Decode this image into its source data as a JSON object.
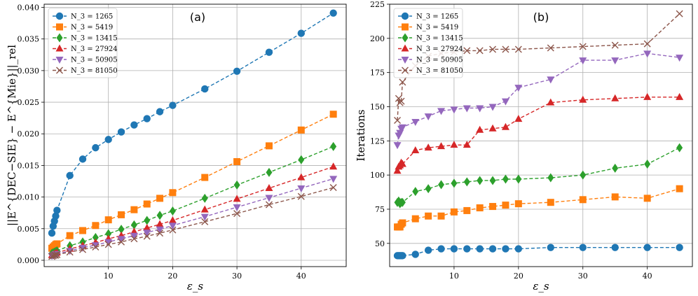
{
  "chart_data": [
    {
      "type": "line",
      "panel_label": "(a)",
      "xlabel": "ε_s",
      "ylabel": "||E^{DEC−SIE} − E^{Mie}||_rel",
      "xlim": [
        0,
        47
      ],
      "ylim": [
        -0.001,
        0.0405
      ],
      "xticks": [
        10,
        20,
        30,
        40
      ],
      "yticks": [
        0.0,
        0.005,
        0.01,
        0.015,
        0.02,
        0.025,
        0.03,
        0.035,
        0.04
      ],
      "ytick_labels": [
        "0.000",
        "0.005",
        "0.010",
        "0.015",
        "0.020",
        "0.025",
        "0.030",
        "0.035",
        "0.040"
      ],
      "grid": true,
      "legend_position": "top-left",
      "series": [
        {
          "name": "N_3 = 1265",
          "color": "#1f77b4",
          "marker": "circle",
          "points": [
            [
              1.2,
              0.0043
            ],
            [
              1.4,
              0.0054
            ],
            [
              1.6,
              0.0062
            ],
            [
              1.8,
              0.007
            ],
            [
              2,
              0.0079
            ],
            [
              4,
              0.0134
            ],
            [
              6,
              0.016
            ],
            [
              8,
              0.0178
            ],
            [
              10,
              0.0191
            ],
            [
              12,
              0.0203
            ],
            [
              14,
              0.0214
            ],
            [
              16,
              0.0224
            ],
            [
              18,
              0.0235
            ],
            [
              20,
              0.0245
            ],
            [
              25,
              0.0271
            ],
            [
              30,
              0.0299
            ],
            [
              35,
              0.0329
            ],
            [
              40,
              0.0359
            ],
            [
              45,
              0.0391
            ]
          ]
        },
        {
          "name": "N_3 = 5419",
          "color": "#ff7f0e",
          "marker": "square",
          "points": [
            [
              1.2,
              0.0019
            ],
            [
              1.4,
              0.0021
            ],
            [
              1.6,
              0.0023
            ],
            [
              1.8,
              0.0025
            ],
            [
              2,
              0.0026
            ],
            [
              4,
              0.0039
            ],
            [
              6,
              0.0047
            ],
            [
              8,
              0.0055
            ],
            [
              10,
              0.0064
            ],
            [
              12,
              0.0072
            ],
            [
              14,
              0.008
            ],
            [
              16,
              0.0089
            ],
            [
              18,
              0.0098
            ],
            [
              20,
              0.0107
            ],
            [
              25,
              0.0131
            ],
            [
              30,
              0.0156
            ],
            [
              35,
              0.0181
            ],
            [
              40,
              0.0206
            ],
            [
              45,
              0.0231
            ]
          ]
        },
        {
          "name": "N_3 = 13415",
          "color": "#2ca02c",
          "marker": "diamond",
          "points": [
            [
              1.2,
              0.0011
            ],
            [
              1.4,
              0.0012
            ],
            [
              1.6,
              0.0013
            ],
            [
              1.8,
              0.0014
            ],
            [
              2,
              0.0015
            ],
            [
              4,
              0.0023
            ],
            [
              6,
              0.0029
            ],
            [
              8,
              0.0036
            ],
            [
              10,
              0.0042
            ],
            [
              12,
              0.0049
            ],
            [
              14,
              0.0056
            ],
            [
              16,
              0.0063
            ],
            [
              18,
              0.0071
            ],
            [
              20,
              0.0078
            ],
            [
              25,
              0.0098
            ],
            [
              30,
              0.0119
            ],
            [
              35,
              0.0139
            ],
            [
              40,
              0.0159
            ],
            [
              45,
              0.018
            ]
          ]
        },
        {
          "name": "N_3 = 27924",
          "color": "#d62728",
          "marker": "triangle-up",
          "points": [
            [
              1.2,
              0.0008
            ],
            [
              1.4,
              0.0009
            ],
            [
              1.6,
              0.001
            ],
            [
              1.8,
              0.0011
            ],
            [
              2,
              0.0012
            ],
            [
              4,
              0.0018
            ],
            [
              6,
              0.0023
            ],
            [
              8,
              0.0028
            ],
            [
              10,
              0.0034
            ],
            [
              12,
              0.0039
            ],
            [
              14,
              0.0045
            ],
            [
              16,
              0.0051
            ],
            [
              18,
              0.0057
            ],
            [
              20,
              0.0063
            ],
            [
              25,
              0.008
            ],
            [
              30,
              0.0097
            ],
            [
              35,
              0.0114
            ],
            [
              40,
              0.0131
            ],
            [
              45,
              0.0148
            ]
          ]
        },
        {
          "name": "N_3 = 50905",
          "color": "#9467bd",
          "marker": "triangle-down",
          "points": [
            [
              1.2,
              0.0007
            ],
            [
              1.4,
              0.0008
            ],
            [
              1.6,
              0.0009
            ],
            [
              1.8,
              0.001
            ],
            [
              2,
              0.001
            ],
            [
              4,
              0.0015
            ],
            [
              6,
              0.002
            ],
            [
              8,
              0.0024
            ],
            [
              10,
              0.0029
            ],
            [
              12,
              0.0034
            ],
            [
              14,
              0.0039
            ],
            [
              16,
              0.0044
            ],
            [
              18,
              0.0049
            ],
            [
              20,
              0.0055
            ],
            [
              25,
              0.0069
            ],
            [
              30,
              0.0084
            ],
            [
              35,
              0.0099
            ],
            [
              40,
              0.0114
            ],
            [
              45,
              0.0129
            ]
          ]
        },
        {
          "name": "N_3 = 81050",
          "color": "#8c564b",
          "marker": "x",
          "points": [
            [
              1.2,
              0.0006
            ],
            [
              1.4,
              0.0007
            ],
            [
              1.6,
              0.0008
            ],
            [
              1.8,
              0.0008
            ],
            [
              2,
              0.0009
            ],
            [
              4,
              0.0013
            ],
            [
              6,
              0.0017
            ],
            [
              8,
              0.0021
            ],
            [
              10,
              0.0025
            ],
            [
              12,
              0.0029
            ],
            [
              14,
              0.0034
            ],
            [
              16,
              0.0038
            ],
            [
              18,
              0.0043
            ],
            [
              20,
              0.0048
            ],
            [
              25,
              0.0061
            ],
            [
              30,
              0.0074
            ],
            [
              35,
              0.0088
            ],
            [
              40,
              0.0101
            ],
            [
              45,
              0.0115
            ]
          ]
        }
      ]
    },
    {
      "type": "line",
      "panel_label": "(b)",
      "xlabel": "ε_s",
      "ylabel": "Iterations",
      "xlim": [
        0,
        47
      ],
      "ylim": [
        33,
        225
      ],
      "xticks": [
        10,
        20,
        30,
        40
      ],
      "yticks": [
        50,
        75,
        100,
        125,
        150,
        175,
        200,
        225
      ],
      "ytick_labels": [
        "50",
        "75",
        "100",
        "125",
        "150",
        "175",
        "200",
        "225"
      ],
      "grid": true,
      "legend_position": "top-left",
      "series": [
        {
          "name": "N_3 = 1265",
          "color": "#1f77b4",
          "marker": "circle",
          "points": [
            [
              1.2,
              41
            ],
            [
              1.4,
              41
            ],
            [
              1.6,
              41
            ],
            [
              1.8,
              41
            ],
            [
              2,
              41
            ],
            [
              4,
              42
            ],
            [
              6,
              45
            ],
            [
              8,
              46
            ],
            [
              10,
              46
            ],
            [
              12,
              46
            ],
            [
              14,
              46
            ],
            [
              16,
              46
            ],
            [
              18,
              46
            ],
            [
              20,
              46
            ],
            [
              25,
              47
            ],
            [
              30,
              47
            ],
            [
              35,
              47
            ],
            [
              40,
              47
            ],
            [
              45,
              47
            ]
          ]
        },
        {
          "name": "N_3 = 5419",
          "color": "#ff7f0e",
          "marker": "square",
          "points": [
            [
              1.2,
              62
            ],
            [
              1.4,
              62
            ],
            [
              1.6,
              62
            ],
            [
              1.8,
              64
            ],
            [
              2,
              65
            ],
            [
              4,
              68
            ],
            [
              6,
              70
            ],
            [
              8,
              70
            ],
            [
              10,
              73
            ],
            [
              12,
              74
            ],
            [
              14,
              76
            ],
            [
              16,
              77
            ],
            [
              18,
              78
            ],
            [
              20,
              79
            ],
            [
              25,
              80
            ],
            [
              30,
              82
            ],
            [
              35,
              84
            ],
            [
              40,
              83
            ],
            [
              45,
              90
            ]
          ]
        },
        {
          "name": "N_3 = 13415",
          "color": "#2ca02c",
          "marker": "diamond",
          "points": [
            [
              1.2,
              80
            ],
            [
              1.4,
              81
            ],
            [
              1.6,
              79
            ],
            [
              1.8,
              80
            ],
            [
              2,
              80
            ],
            [
              4,
              88
            ],
            [
              6,
              90
            ],
            [
              8,
              93
            ],
            [
              10,
              94
            ],
            [
              12,
              95
            ],
            [
              14,
              96
            ],
            [
              16,
              96
            ],
            [
              18,
              97
            ],
            [
              20,
              97
            ],
            [
              25,
              98
            ],
            [
              30,
              100
            ],
            [
              35,
              105
            ],
            [
              40,
              108
            ],
            [
              45,
              120
            ]
          ]
        },
        {
          "name": "N_3 = 27924",
          "color": "#d62728",
          "marker": "triangle-up",
          "points": [
            [
              1.2,
              103
            ],
            [
              1.4,
              106
            ],
            [
              1.6,
              107
            ],
            [
              1.8,
              109
            ],
            [
              2,
              108
            ],
            [
              4,
              118
            ],
            [
              6,
              120
            ],
            [
              8,
              121
            ],
            [
              10,
              122
            ],
            [
              12,
              122
            ],
            [
              14,
              133
            ],
            [
              16,
              134
            ],
            [
              18,
              135
            ],
            [
              20,
              141
            ],
            [
              25,
              153
            ],
            [
              30,
              155
            ],
            [
              35,
              156
            ],
            [
              40,
              157
            ],
            [
              45,
              157
            ]
          ]
        },
        {
          "name": "N_3 = 50905",
          "color": "#9467bd",
          "marker": "triangle-down",
          "points": [
            [
              1.2,
              122
            ],
            [
              1.4,
              129
            ],
            [
              1.6,
              131
            ],
            [
              1.8,
              134
            ],
            [
              2,
              135
            ],
            [
              4,
              139
            ],
            [
              6,
              143
            ],
            [
              8,
              147
            ],
            [
              10,
              148
            ],
            [
              12,
              149
            ],
            [
              14,
              149
            ],
            [
              16,
              150
            ],
            [
              18,
              154
            ],
            [
              20,
              164
            ],
            [
              25,
              170
            ],
            [
              30,
              184
            ],
            [
              35,
              184
            ],
            [
              40,
              189
            ],
            [
              45,
              186
            ]
          ]
        },
        {
          "name": "N_3 = 81050",
          "color": "#8c564b",
          "marker": "x",
          "points": [
            [
              1.2,
              140
            ],
            [
              1.4,
              156
            ],
            [
              1.6,
              153
            ],
            [
              1.8,
              154
            ],
            [
              2,
              168
            ],
            [
              4,
              180
            ],
            [
              6,
              187
            ],
            [
              8,
              189
            ],
            [
              10,
              190
            ],
            [
              12,
              191
            ],
            [
              14,
              191
            ],
            [
              16,
              192
            ],
            [
              18,
              192
            ],
            [
              20,
              192
            ],
            [
              25,
              193
            ],
            [
              30,
              194
            ],
            [
              35,
              195
            ],
            [
              40,
              196
            ],
            [
              45,
              218
            ]
          ]
        }
      ]
    }
  ]
}
